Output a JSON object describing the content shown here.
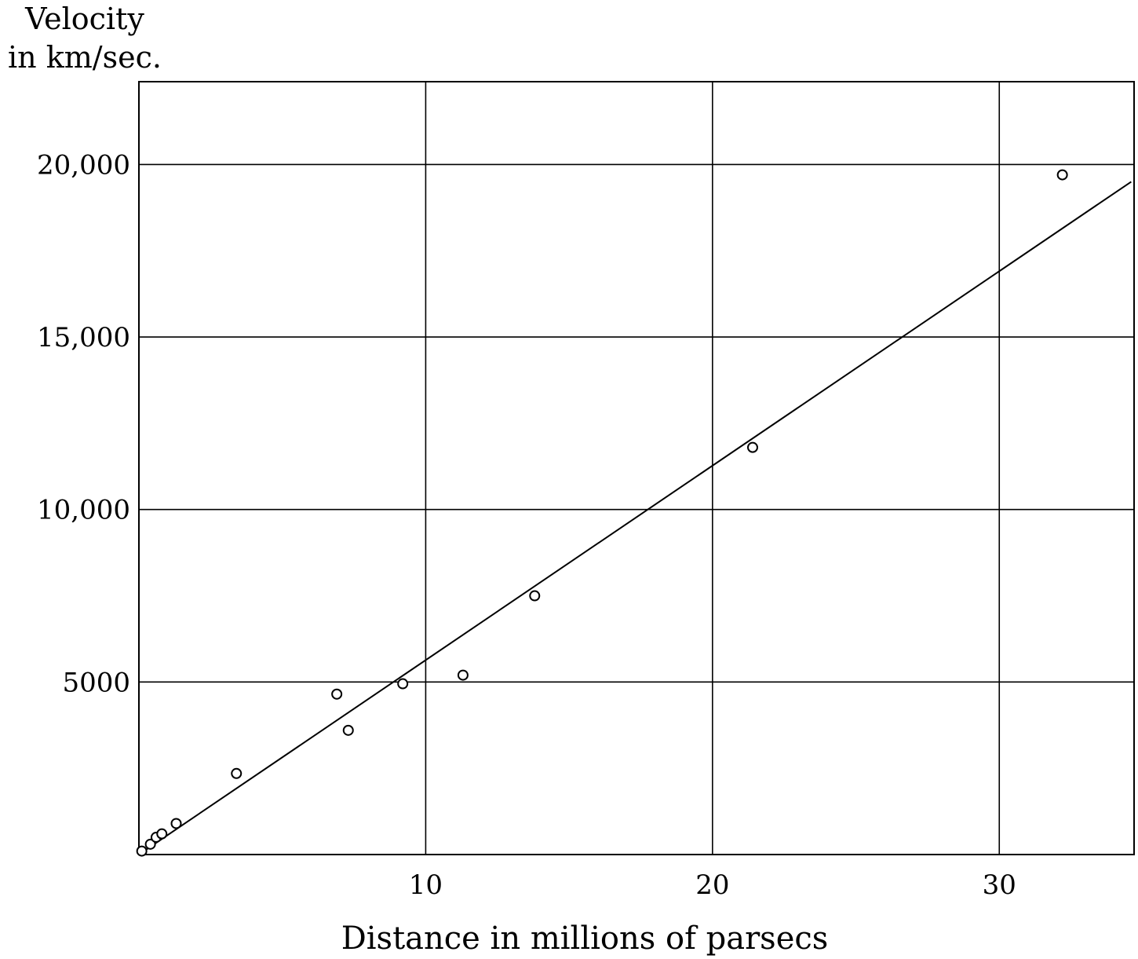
{
  "chart_data": {
    "type": "scatter",
    "ylabel_lines": [
      "Velocity",
      "in km/sec."
    ],
    "xlabel": "Distance in millions of parsecs",
    "xlim": [
      0,
      34.7
    ],
    "ylim": [
      0,
      22400
    ],
    "x_ticks": [
      10,
      20,
      30
    ],
    "x_tick_labels": [
      "10",
      "20",
      "30"
    ],
    "y_ticks": [
      5000,
      10000,
      15000,
      20000
    ],
    "y_tick_labels": [
      "5000",
      "10,000",
      "15,000",
      "20,000"
    ],
    "grid": true,
    "series": [
      {
        "points": [
          {
            "x": 0.1,
            "y": 100
          },
          {
            "x": 0.4,
            "y": 300
          },
          {
            "x": 0.6,
            "y": 500
          },
          {
            "x": 0.8,
            "y": 600
          },
          {
            "x": 1.3,
            "y": 900
          },
          {
            "x": 3.4,
            "y": 2350
          },
          {
            "x": 6.9,
            "y": 4650
          },
          {
            "x": 7.3,
            "y": 3600
          },
          {
            "x": 9.2,
            "y": 4950
          },
          {
            "x": 11.3,
            "y": 5200
          },
          {
            "x": 13.8,
            "y": 7500
          },
          {
            "x": 21.4,
            "y": 11800
          },
          {
            "x": 32.2,
            "y": 19700
          }
        ]
      }
    ],
    "fit_line": {
      "x": [
        0,
        34.6
      ],
      "y": [
        0,
        19500
      ]
    }
  }
}
